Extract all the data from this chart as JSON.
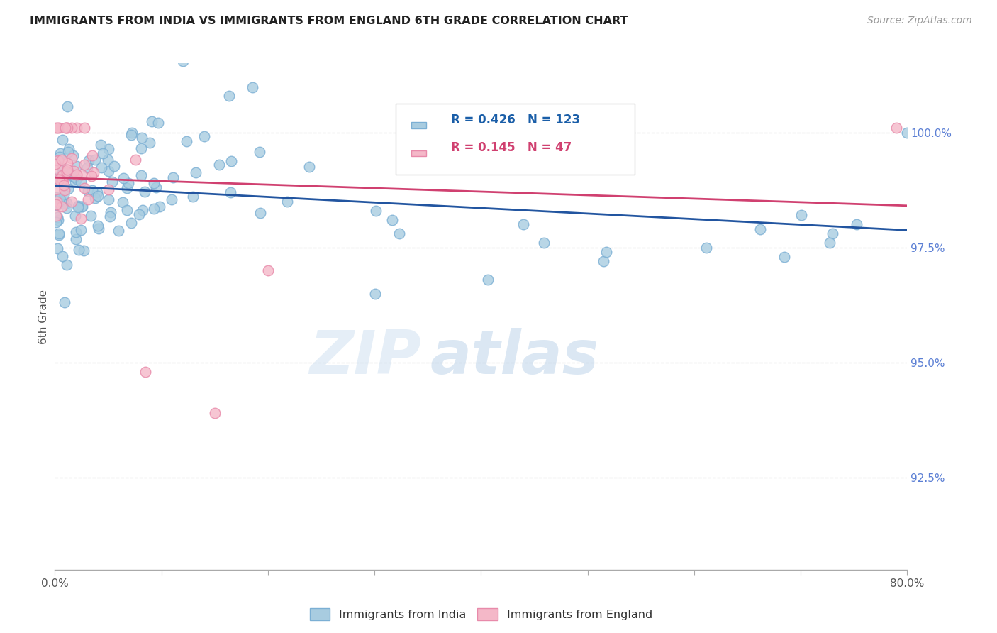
{
  "title": "IMMIGRANTS FROM INDIA VS IMMIGRANTS FROM ENGLAND 6TH GRADE CORRELATION CHART",
  "source": "Source: ZipAtlas.com",
  "legend_india": "Immigrants from India",
  "legend_england": "Immigrants from England",
  "ylabel": "6th Grade",
  "xlim": [
    0.0,
    80.0
  ],
  "ylim": [
    90.5,
    101.5
  ],
  "yticks": [
    92.5,
    95.0,
    97.5,
    100.0
  ],
  "ytick_labels": [
    "92.5%",
    "95.0%",
    "97.5%",
    "100.0%"
  ],
  "india_R": 0.426,
  "india_N": 123,
  "england_R": 0.145,
  "england_N": 47,
  "india_color": "#a8cce0",
  "india_edge_color": "#7bafd4",
  "england_color": "#f4b8c8",
  "england_edge_color": "#e88aaa",
  "india_line_color": "#2255a0",
  "england_line_color": "#d04070",
  "background_color": "#ffffff",
  "grid_color": "#c8c8c8",
  "title_color": "#222222",
  "legend_color_blue": "#1a5ea8",
  "legend_color_pink": "#d04070",
  "source_color": "#999999",
  "watermark_zip": "ZIP",
  "watermark_atlas": "atlas",
  "india_seed": 42,
  "england_seed": 77
}
